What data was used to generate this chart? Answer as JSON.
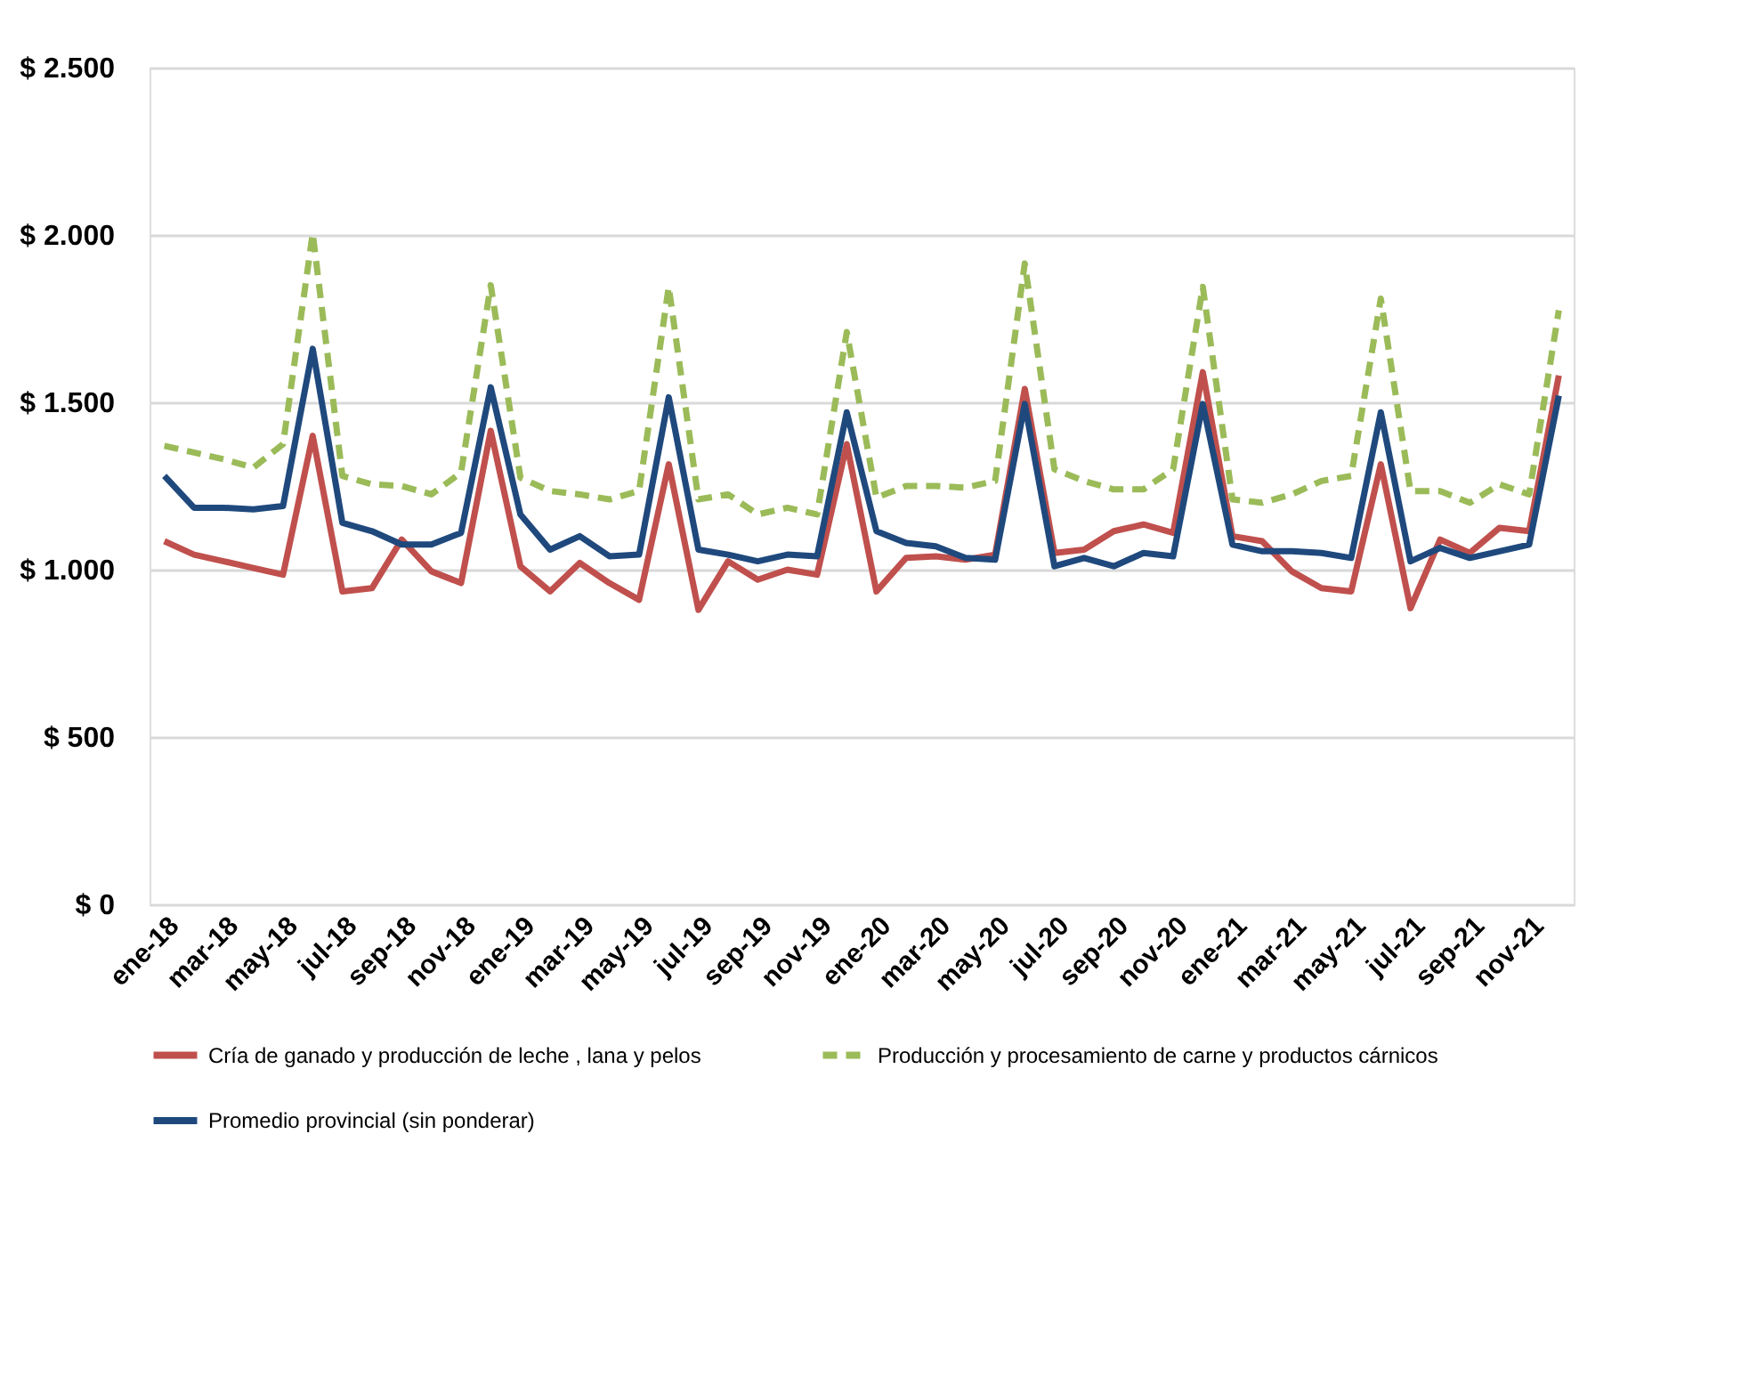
{
  "chart_data": {
    "type": "line",
    "categories": [
      "ene-18",
      null,
      "mar-18",
      null,
      "may-18",
      null,
      "jul-18",
      null,
      "sep-18",
      null,
      "nov-18",
      null,
      "ene-19",
      null,
      "mar-19",
      null,
      "may-19",
      null,
      "jul-19",
      null,
      "sep-19",
      null,
      "nov-19",
      null,
      "ene-20",
      null,
      "mar-20",
      null,
      "may-20",
      null,
      "jul-20",
      null,
      "sep-20",
      null,
      "nov-20",
      null,
      "ene-21",
      null,
      "mar-21",
      null,
      "may-21",
      null,
      "jul-21",
      null,
      "sep-21",
      null,
      "nov-21",
      null
    ],
    "series": [
      {
        "name": "Cría de ganado y producción de leche , lana y pelos",
        "color": "#c0504d",
        "line_style": "solid",
        "values": [
          1085,
          1045,
          1025,
          1005,
          985,
          1400,
          935,
          945,
          1090,
          995,
          960,
          1415,
          1010,
          935,
          1020,
          960,
          910,
          1315,
          880,
          1025,
          970,
          1000,
          985,
          1375,
          935,
          1035,
          1040,
          1030,
          1045,
          1540,
          1050,
          1060,
          1115,
          1135,
          1110,
          1590,
          1100,
          1085,
          995,
          945,
          935,
          1315,
          885,
          1090,
          1050,
          1125,
          1115,
          1580
        ]
      },
      {
        "name": "Producción y procesamiento de carne y productos cárnicos",
        "color": "#9bbb59",
        "line_style": "dashed",
        "values": [
          1370,
          1350,
          1330,
          1305,
          1375,
          2005,
          1280,
          1255,
          1250,
          1225,
          1290,
          1850,
          1275,
          1235,
          1225,
          1210,
          1235,
          1845,
          1210,
          1225,
          1165,
          1185,
          1165,
          1710,
          1215,
          1250,
          1250,
          1245,
          1265,
          1915,
          1300,
          1265,
          1240,
          1240,
          1300,
          1845,
          1210,
          1200,
          1225,
          1265,
          1280,
          1810,
          1235,
          1235,
          1200,
          1255,
          1225,
          1775
        ]
      },
      {
        "name": "Promedio provincial (sin ponderar)",
        "color": "#1f497d",
        "line_style": "solid",
        "values": [
          1280,
          1185,
          1185,
          1180,
          1190,
          1660,
          1140,
          1115,
          1075,
          1075,
          1110,
          1545,
          1165,
          1060,
          1100,
          1040,
          1045,
          1515,
          1060,
          1045,
          1025,
          1045,
          1040,
          1470,
          1115,
          1080,
          1070,
          1035,
          1030,
          1495,
          1010,
          1035,
          1010,
          1050,
          1040,
          1495,
          1075,
          1055,
          1055,
          1050,
          1035,
          1470,
          1025,
          1065,
          1035,
          1055,
          1075,
          1520
        ]
      }
    ],
    "ylim": [
      0,
      2500
    ],
    "yticks": [
      {
        "value": 0,
        "label": "$ 0"
      },
      {
        "value": 500,
        "label": "$ 500"
      },
      {
        "value": 1000,
        "label": "$ 1.000"
      },
      {
        "value": 1500,
        "label": "$ 1.500"
      },
      {
        "value": 2000,
        "label": "$ 2.000"
      },
      {
        "value": 2500,
        "label": "$ 2.500"
      }
    ],
    "grid": "y",
    "legend": "bottom",
    "marker": "none"
  }
}
